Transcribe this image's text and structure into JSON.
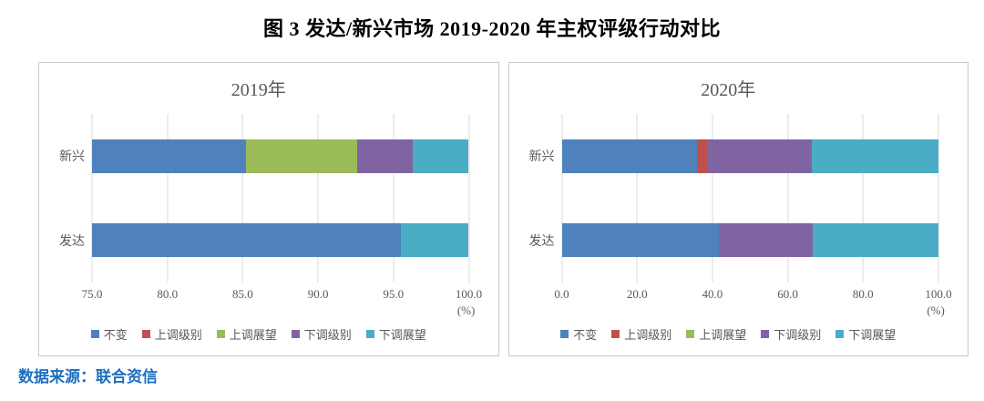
{
  "figure": {
    "title": "图 3 发达/新兴市场 2019-2020 年主权评级行动对比",
    "source_note": "数据来源：联合资信"
  },
  "colors": {
    "unchanged": "#4F81BD",
    "upgrade_rating": "#C0504D",
    "upgrade_outlook": "#9BBB59",
    "downgrade_rating": "#8064A2",
    "downgrade_outlook": "#4BACC6",
    "source_text": "#1B6FC0",
    "axis_text": "#595959",
    "gridline": "#D9D9D9",
    "panel_border": "#C9C9C9"
  },
  "chart_data": [
    {
      "type": "bar",
      "orientation": "horizontal",
      "stacked": true,
      "grid": true,
      "title": "2019年",
      "categories": [
        "新兴",
        "发达"
      ],
      "series": [
        {
          "name": "不变",
          "color": "#4F81BD",
          "values": [
            85.2,
            95.5
          ]
        },
        {
          "name": "上调级别",
          "color": "#C0504D",
          "values": [
            0.0,
            0.0
          ]
        },
        {
          "name": "上调展望",
          "color": "#9BBB59",
          "values": [
            7.4,
            0.0
          ]
        },
        {
          "name": "下调级别",
          "color": "#8064A2",
          "values": [
            3.7,
            0.0
          ]
        },
        {
          "name": "下调展望",
          "color": "#4BACC6",
          "values": [
            3.7,
            4.5
          ]
        }
      ],
      "xlim": [
        75,
        100
      ],
      "xticks": [
        "75.0",
        "80.0",
        "85.0",
        "90.0",
        "95.0",
        "100.0"
      ],
      "x_unit": "(%)",
      "legend": [
        "不变",
        "上调级别",
        "上调展望",
        "下调级别",
        "下调展望"
      ],
      "legend_position": "bottom"
    },
    {
      "type": "bar",
      "orientation": "horizontal",
      "stacked": true,
      "grid": true,
      "title": "2020年",
      "categories": [
        "新兴",
        "发达"
      ],
      "series": [
        {
          "name": "不变",
          "color": "#4F81BD",
          "values": [
            36.0,
            41.7
          ]
        },
        {
          "name": "上调级别",
          "color": "#C0504D",
          "values": [
            2.5,
            0.0
          ]
        },
        {
          "name": "上调展望",
          "color": "#9BBB59",
          "values": [
            0.0,
            0.0
          ]
        },
        {
          "name": "下调级别",
          "color": "#8064A2",
          "values": [
            28.0,
            25.0
          ]
        },
        {
          "name": "下调展望",
          "color": "#4BACC6",
          "values": [
            33.5,
            33.3
          ]
        }
      ],
      "xlim": [
        0,
        100
      ],
      "xticks": [
        "0.0",
        "20.0",
        "40.0",
        "60.0",
        "80.0",
        "100.0"
      ],
      "x_unit": "(%)",
      "legend": [
        "不变",
        "上调级别",
        "上调展望",
        "下调级别",
        "下调展望"
      ],
      "legend_position": "bottom"
    }
  ]
}
